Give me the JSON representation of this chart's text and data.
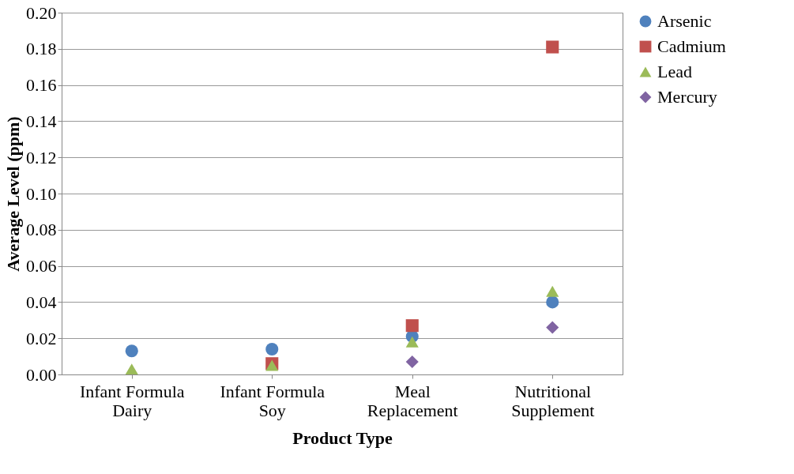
{
  "chart_data": {
    "type": "scatter",
    "xlabel": "Product Type",
    "ylabel": "Average Level (ppm)",
    "categories": [
      "Infant Formula Dairy",
      "Infant Formula Soy",
      "Meal Replacement",
      "Nutritional Supplement"
    ],
    "series": [
      {
        "name": "Arsenic",
        "color": "#4f81bd",
        "marker": "circle",
        "values": [
          0.013,
          0.014,
          0.021,
          0.04
        ]
      },
      {
        "name": "Cadmium",
        "color": "#c0504d",
        "marker": "square",
        "values": [
          null,
          0.006,
          0.027,
          0.181
        ]
      },
      {
        "name": "Lead",
        "color": "#9bbb59",
        "marker": "triangle",
        "values": [
          0.003,
          0.005,
          0.018,
          0.046
        ]
      },
      {
        "name": "Mercury",
        "color": "#8064a2",
        "marker": "diamond",
        "values": [
          null,
          null,
          0.007,
          0.026
        ]
      }
    ],
    "ylim": [
      0,
      0.2
    ],
    "yticks": [
      {
        "value": 0,
        "label": "0.00"
      },
      {
        "value": 0.02,
        "label": "0.02"
      },
      {
        "value": 0.04,
        "label": "0.04"
      },
      {
        "value": 0.06,
        "label": "0.06"
      },
      {
        "value": 0.08,
        "label": "0.08"
      },
      {
        "value": 0.1,
        "label": "0.10"
      },
      {
        "value": 0.12,
        "label": "0.12"
      },
      {
        "value": 0.14,
        "label": "0.14"
      },
      {
        "value": 0.16,
        "label": "0.16"
      },
      {
        "value": 0.18,
        "label": "0.18"
      },
      {
        "value": 0.2,
        "label": "0.20"
      }
    ],
    "grid": "y",
    "legend": "right"
  }
}
